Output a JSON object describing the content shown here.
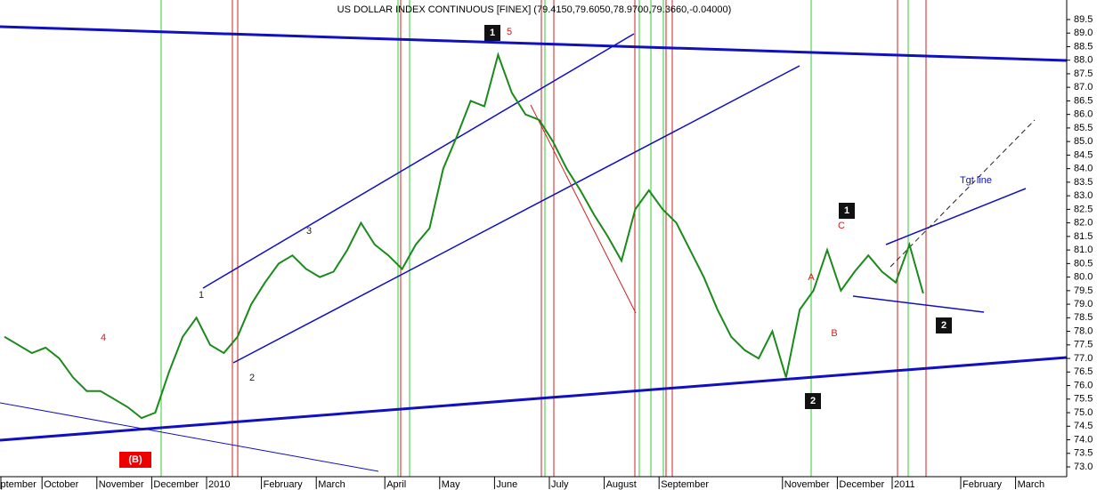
{
  "chart_data": {
    "type": "line",
    "title": "US DOLLAR INDEX CONTINUOUS [FINEX] (79.4150,79.6050,78.9700,79.3660,-0.04000)",
    "categories": [
      "September",
      null,
      null,
      "October",
      null,
      null,
      null,
      "November",
      null,
      null,
      null,
      "December",
      null,
      null,
      null,
      "2010",
      null,
      null,
      null,
      "February",
      null,
      null,
      null,
      "March",
      null,
      null,
      null,
      null,
      "April",
      null,
      null,
      null,
      "May",
      null,
      null,
      null,
      "June",
      null,
      null,
      null,
      "July",
      null,
      null,
      null,
      "August",
      null,
      null,
      null,
      "September",
      null,
      null,
      null,
      null,
      null,
      null,
      null,
      null,
      "November",
      null,
      null,
      null,
      "December",
      null,
      null,
      null,
      "2011",
      null,
      null,
      null,
      null,
      "February",
      null,
      null,
      null,
      "March",
      null
    ],
    "series": [
      {
        "name": "Close",
        "color": "#1a8a1a",
        "values": [
          77.8,
          77.5,
          77.2,
          77.4,
          77.0,
          76.3,
          75.8,
          75.8,
          75.5,
          75.2,
          74.8,
          75.0,
          76.5,
          77.8,
          78.5,
          77.5,
          77.2,
          77.8,
          79.0,
          79.8,
          80.5,
          80.8,
          80.3,
          80.0,
          80.2,
          81.0,
          82.0,
          81.2,
          80.8,
          80.3,
          81.2,
          81.8,
          84.0,
          85.2,
          86.5,
          86.3,
          88.2,
          86.8,
          86.0,
          85.8,
          85.0,
          84.0,
          83.2,
          82.3,
          81.5,
          80.6,
          82.5,
          83.2,
          82.5,
          82.0,
          81.0,
          80.0,
          78.8,
          77.8,
          77.3,
          77.0,
          78.0,
          76.3,
          78.8,
          79.5,
          81.0,
          79.5,
          80.2,
          80.8,
          80.2,
          79.8,
          81.2,
          79.4,
          null,
          null,
          null,
          null,
          null,
          null,
          null,
          null
        ]
      }
    ],
    "ylim": [
      72.64,
      90.22
    ],
    "yticks": [
      {
        "value": 73,
        "label": "73.0"
      },
      73.5,
      {
        "value": 74,
        "label": "74.0"
      },
      74.5,
      {
        "value": 75,
        "label": "75.0"
      },
      75.5,
      {
        "value": 76,
        "label": "76.0"
      },
      76.5,
      {
        "value": 77,
        "label": "77.0"
      },
      77.5,
      {
        "value": 78,
        "label": "78.0"
      },
      78.5,
      {
        "value": 79,
        "label": "79.0"
      },
      79.5,
      {
        "value": 80,
        "label": "80.0"
      },
      80.5,
      {
        "value": 81,
        "label": "81.0"
      },
      81.5,
      {
        "value": 82,
        "label": "82.0"
      },
      82.5,
      {
        "value": 83,
        "label": "83.0"
      },
      83.5,
      {
        "value": 84,
        "label": "84.0"
      },
      84.5,
      {
        "value": 85,
        "label": "85.0"
      },
      85.5,
      {
        "value": 86,
        "label": "86.0"
      },
      86.5,
      {
        "value": 87,
        "label": "87.0"
      },
      87.5,
      {
        "value": 88,
        "label": "88.0"
      },
      88.5,
      {
        "value": 89,
        "label": "89.0"
      },
      89.5
    ],
    "annotations": [
      "(B)",
      "1",
      "2",
      "3",
      "4",
      "5",
      "A",
      "B",
      "C",
      "Tgt line",
      "1",
      "2",
      "1",
      "2"
    ]
  }
}
